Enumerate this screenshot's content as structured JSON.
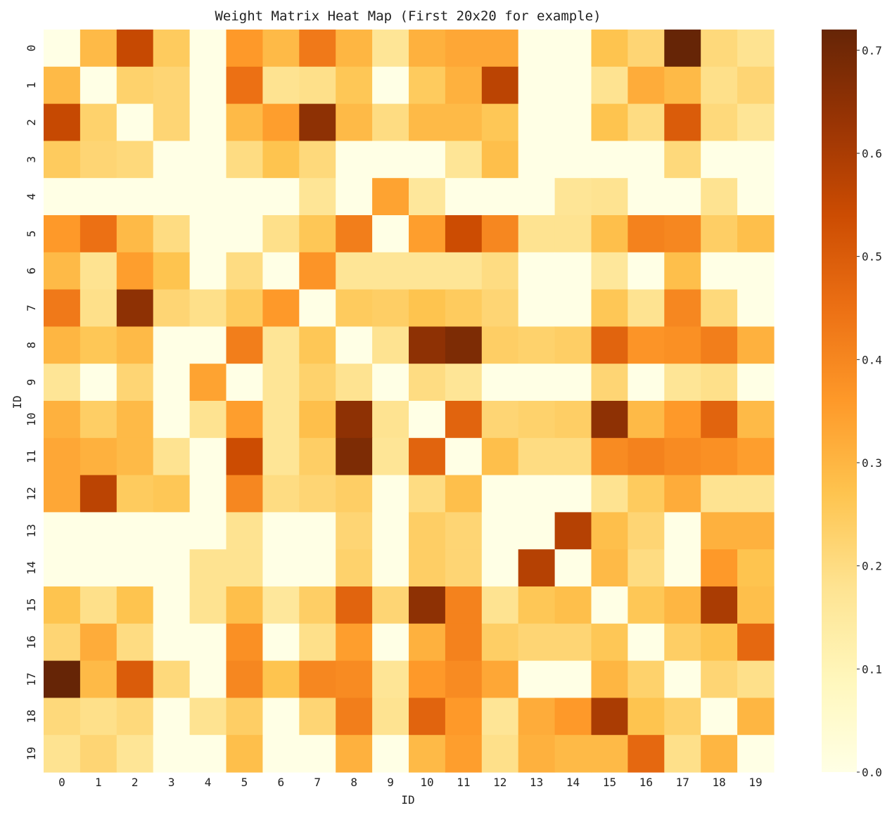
{
  "chart_data": {
    "type": "heatmap",
    "title": "Weight Matrix Heat Map (First 20x20 for example)",
    "xlabel": "ID",
    "ylabel": "ID",
    "x_categories": [
      "0",
      "1",
      "2",
      "3",
      "4",
      "5",
      "6",
      "7",
      "8",
      "9",
      "10",
      "11",
      "12",
      "13",
      "14",
      "15",
      "16",
      "17",
      "18",
      "19"
    ],
    "y_categories": [
      "0",
      "1",
      "2",
      "3",
      "4",
      "5",
      "6",
      "7",
      "8",
      "9",
      "10",
      "11",
      "12",
      "13",
      "14",
      "15",
      "16",
      "17",
      "18",
      "19"
    ],
    "colorbar": {
      "min": 0.0,
      "max": 0.72,
      "ticks": [
        0.0,
        0.1,
        0.2,
        0.3,
        0.4,
        0.5,
        0.6,
        0.7
      ],
      "tick_labels": [
        "0.0",
        "0.1",
        "0.2",
        "0.3",
        "0.4",
        "0.5",
        "0.6",
        "0.7"
      ],
      "colormap": "YlOrBr",
      "colors": [
        "#ffffe5",
        "#fff7bc",
        "#fee391",
        "#fec44f",
        "#fe9929",
        "#ec7014",
        "#cc4c02",
        "#993404",
        "#662506"
      ]
    },
    "grid": false,
    "values": [
      [
        0.0,
        0.29,
        0.55,
        0.25,
        0.0,
        0.36,
        0.29,
        0.43,
        0.3,
        0.17,
        0.31,
        0.33,
        0.33,
        0.0,
        0.0,
        0.27,
        0.22,
        0.72,
        0.21,
        0.18
      ],
      [
        0.29,
        0.0,
        0.23,
        0.22,
        0.0,
        0.45,
        0.18,
        0.19,
        0.26,
        0.0,
        0.25,
        0.31,
        0.57,
        0.0,
        0.0,
        0.18,
        0.32,
        0.29,
        0.19,
        0.22
      ],
      [
        0.55,
        0.23,
        0.0,
        0.22,
        0.0,
        0.29,
        0.35,
        0.65,
        0.29,
        0.2,
        0.29,
        0.29,
        0.26,
        0.0,
        0.0,
        0.27,
        0.2,
        0.5,
        0.21,
        0.17
      ],
      [
        0.25,
        0.22,
        0.21,
        0.0,
        0.0,
        0.2,
        0.27,
        0.21,
        0.0,
        0.0,
        0.0,
        0.17,
        0.28,
        0.0,
        0.0,
        0.0,
        0.0,
        0.21,
        0.0,
        0.0
      ],
      [
        0.0,
        0.0,
        0.0,
        0.0,
        0.0,
        0.0,
        0.0,
        0.17,
        0.0,
        0.34,
        0.16,
        0.0,
        0.0,
        0.0,
        0.17,
        0.18,
        0.0,
        0.0,
        0.18,
        0.0
      ],
      [
        0.36,
        0.45,
        0.29,
        0.2,
        0.0,
        0.0,
        0.19,
        0.26,
        0.42,
        0.0,
        0.35,
        0.54,
        0.4,
        0.18,
        0.18,
        0.28,
        0.41,
        0.4,
        0.24,
        0.28
      ],
      [
        0.29,
        0.18,
        0.35,
        0.27,
        0.0,
        0.2,
        0.0,
        0.37,
        0.17,
        0.17,
        0.17,
        0.17,
        0.2,
        0.0,
        0.0,
        0.16,
        0.0,
        0.28,
        0.0,
        0.0
      ],
      [
        0.43,
        0.19,
        0.65,
        0.22,
        0.19,
        0.25,
        0.36,
        0.0,
        0.25,
        0.24,
        0.27,
        0.25,
        0.22,
        0.0,
        0.0,
        0.26,
        0.18,
        0.4,
        0.21,
        0.0
      ],
      [
        0.3,
        0.26,
        0.29,
        0.0,
        0.0,
        0.42,
        0.17,
        0.26,
        0.0,
        0.18,
        0.65,
        0.68,
        0.24,
        0.23,
        0.24,
        0.48,
        0.37,
        0.38,
        0.42,
        0.31
      ],
      [
        0.17,
        0.0,
        0.22,
        0.0,
        0.34,
        0.0,
        0.17,
        0.23,
        0.18,
        0.0,
        0.2,
        0.17,
        0.0,
        0.0,
        0.0,
        0.22,
        0.0,
        0.17,
        0.19,
        0.0
      ],
      [
        0.31,
        0.24,
        0.29,
        0.0,
        0.18,
        0.35,
        0.17,
        0.28,
        0.65,
        0.18,
        0.0,
        0.48,
        0.22,
        0.23,
        0.24,
        0.65,
        0.29,
        0.36,
        0.48,
        0.29
      ],
      [
        0.33,
        0.31,
        0.29,
        0.18,
        0.0,
        0.54,
        0.17,
        0.24,
        0.68,
        0.17,
        0.48,
        0.0,
        0.28,
        0.2,
        0.2,
        0.39,
        0.41,
        0.39,
        0.38,
        0.35
      ],
      [
        0.33,
        0.57,
        0.25,
        0.26,
        0.0,
        0.4,
        0.2,
        0.22,
        0.24,
        0.0,
        0.2,
        0.28,
        0.0,
        0.0,
        0.0,
        0.18,
        0.25,
        0.32,
        0.18,
        0.18
      ],
      [
        0.0,
        0.0,
        0.0,
        0.0,
        0.0,
        0.18,
        0.0,
        0.0,
        0.22,
        0.0,
        0.24,
        0.22,
        0.0,
        0.0,
        0.58,
        0.28,
        0.22,
        0.0,
        0.31,
        0.31
      ],
      [
        0.0,
        0.0,
        0.0,
        0.0,
        0.18,
        0.18,
        0.0,
        0.0,
        0.23,
        0.0,
        0.24,
        0.22,
        0.0,
        0.58,
        0.0,
        0.29,
        0.2,
        0.0,
        0.36,
        0.27
      ],
      [
        0.27,
        0.19,
        0.27,
        0.0,
        0.18,
        0.28,
        0.16,
        0.24,
        0.48,
        0.22,
        0.65,
        0.41,
        0.18,
        0.26,
        0.28,
        0.0,
        0.26,
        0.3,
        0.6,
        0.28
      ],
      [
        0.22,
        0.32,
        0.2,
        0.0,
        0.0,
        0.38,
        0.0,
        0.19,
        0.35,
        0.0,
        0.31,
        0.41,
        0.24,
        0.22,
        0.22,
        0.26,
        0.0,
        0.24,
        0.27,
        0.47
      ],
      [
        0.72,
        0.29,
        0.5,
        0.21,
        0.0,
        0.4,
        0.27,
        0.4,
        0.39,
        0.17,
        0.36,
        0.39,
        0.33,
        0.0,
        0.0,
        0.3,
        0.23,
        0.0,
        0.22,
        0.19
      ],
      [
        0.21,
        0.19,
        0.21,
        0.0,
        0.18,
        0.24,
        0.0,
        0.22,
        0.42,
        0.18,
        0.48,
        0.36,
        0.17,
        0.32,
        0.36,
        0.6,
        0.27,
        0.23,
        0.0,
        0.3
      ],
      [
        0.18,
        0.22,
        0.17,
        0.0,
        0.0,
        0.28,
        0.0,
        0.0,
        0.31,
        0.0,
        0.29,
        0.35,
        0.19,
        0.31,
        0.29,
        0.29,
        0.47,
        0.19,
        0.3,
        0.0
      ]
    ]
  }
}
